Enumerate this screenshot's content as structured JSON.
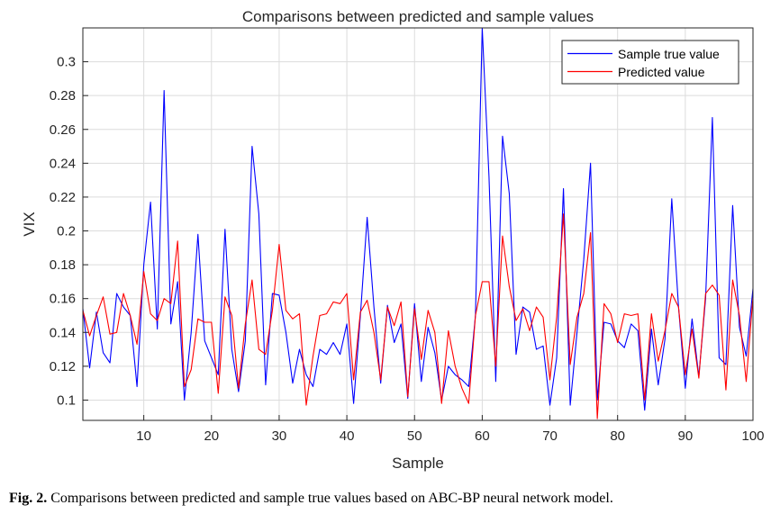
{
  "chart_data": {
    "type": "line",
    "title": "Comparisons between predicted and sample values",
    "xlabel": "Sample",
    "ylabel": "VIX",
    "xlim": [
      1,
      100
    ],
    "ylim": [
      0.088,
      0.32
    ],
    "x_ticks": [
      10,
      20,
      30,
      40,
      50,
      60,
      70,
      80,
      90,
      100
    ],
    "y_ticks": [
      0.1,
      0.12,
      0.14,
      0.16,
      0.18,
      0.2,
      0.22,
      0.24,
      0.26,
      0.28,
      0.3
    ],
    "y_tick_labels": [
      "0.1",
      "0.12",
      "0.14",
      "0.16",
      "0.18",
      "0.2",
      "0.22",
      "0.24",
      "0.26",
      "0.28",
      "0.3"
    ],
    "grid": true,
    "legend_position": "top-right",
    "series": [
      {
        "name": "Sample true value",
        "color": "#0000ff",
        "values": [
          0.154,
          0.119,
          0.152,
          0.128,
          0.122,
          0.163,
          0.155,
          0.15,
          0.108,
          0.18,
          0.217,
          0.142,
          0.283,
          0.145,
          0.17,
          0.1,
          0.14,
          0.198,
          0.135,
          0.125,
          0.115,
          0.201,
          0.13,
          0.105,
          0.135,
          0.25,
          0.21,
          0.109,
          0.163,
          0.162,
          0.14,
          0.11,
          0.13,
          0.115,
          0.108,
          0.13,
          0.127,
          0.134,
          0.127,
          0.145,
          0.098,
          0.15,
          0.208,
          0.155,
          0.11,
          0.156,
          0.134,
          0.145,
          0.101,
          0.157,
          0.111,
          0.143,
          0.128,
          0.1,
          0.12,
          0.115,
          0.112,
          0.108,
          0.15,
          0.32,
          0.232,
          0.111,
          0.256,
          0.222,
          0.127,
          0.155,
          0.152,
          0.13,
          0.132,
          0.097,
          0.125,
          0.225,
          0.097,
          0.14,
          0.183,
          0.24,
          0.1,
          0.146,
          0.145,
          0.135,
          0.131,
          0.145,
          0.141,
          0.094,
          0.142,
          0.109,
          0.136,
          0.219,
          0.155,
          0.107,
          0.148,
          0.114,
          0.16,
          0.267,
          0.125,
          0.121,
          0.215,
          0.143,
          0.126,
          0.166
        ]
      },
      {
        "name": "Predicted value",
        "color": "#ff0000",
        "values": [
          0.153,
          0.138,
          0.15,
          0.161,
          0.139,
          0.14,
          0.163,
          0.15,
          0.133,
          0.176,
          0.151,
          0.147,
          0.16,
          0.157,
          0.194,
          0.108,
          0.118,
          0.148,
          0.146,
          0.146,
          0.104,
          0.161,
          0.15,
          0.107,
          0.145,
          0.171,
          0.13,
          0.127,
          0.153,
          0.192,
          0.153,
          0.148,
          0.151,
          0.097,
          0.126,
          0.15,
          0.151,
          0.158,
          0.157,
          0.163,
          0.112,
          0.152,
          0.159,
          0.14,
          0.112,
          0.155,
          0.144,
          0.158,
          0.102,
          0.154,
          0.124,
          0.153,
          0.14,
          0.098,
          0.141,
          0.12,
          0.107,
          0.098,
          0.15,
          0.17,
          0.17,
          0.12,
          0.197,
          0.167,
          0.147,
          0.154,
          0.141,
          0.155,
          0.149,
          0.112,
          0.149,
          0.21,
          0.121,
          0.149,
          0.163,
          0.199,
          0.089,
          0.157,
          0.151,
          0.134,
          0.151,
          0.15,
          0.151,
          0.1,
          0.151,
          0.123,
          0.141,
          0.163,
          0.155,
          0.115,
          0.142,
          0.113,
          0.163,
          0.168,
          0.162,
          0.106,
          0.171,
          0.15,
          0.111,
          0.161
        ]
      }
    ]
  },
  "caption": {
    "label": "Fig. 2.",
    "text": " Comparisons between predicted and sample true values based on ABC-BP neural network model."
  }
}
